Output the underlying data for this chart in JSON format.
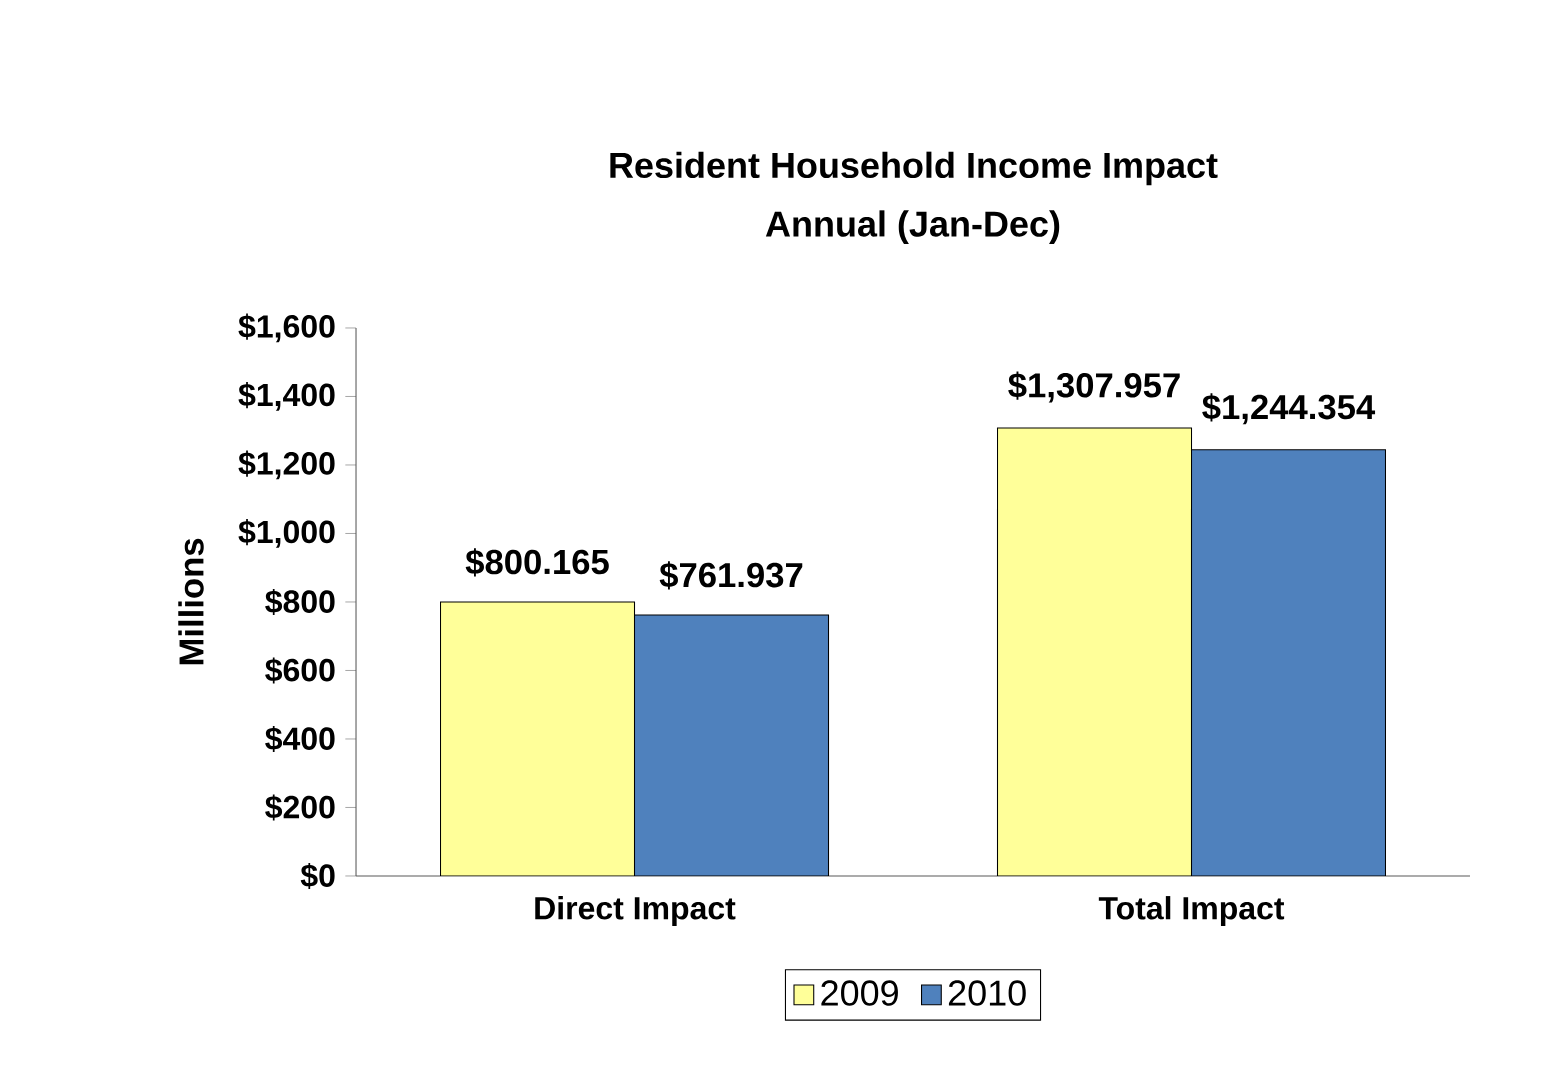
{
  "chart_data": {
    "type": "bar",
    "title": "Resident Household Income Impact",
    "subtitle": "Annual (Jan-Dec)",
    "ylabel": "Millions",
    "categories": [
      "Direct Impact",
      "Total Impact"
    ],
    "series": [
      {
        "name": "2009",
        "color": "#ffff99",
        "values": [
          800.165,
          1307.957
        ],
        "value_labels": [
          "$800.165",
          "$1,307.957"
        ]
      },
      {
        "name": "2010",
        "color": "#4f81bd",
        "values": [
          761.937,
          1244.354
        ],
        "value_labels": [
          "$761.937",
          "$1,244.354"
        ]
      }
    ],
    "ylim": [
      0,
      1600
    ],
    "yticks": [
      {
        "value": 0,
        "label": "$0"
      },
      {
        "value": 200,
        "label": "$200"
      },
      {
        "value": 400,
        "label": "$400"
      },
      {
        "value": 600,
        "label": "$600"
      },
      {
        "value": 800,
        "label": "$800"
      },
      {
        "value": 1000,
        "label": "$1,000"
      },
      {
        "value": 1200,
        "label": "$1,200"
      },
      {
        "value": 1400,
        "label": "$1,400"
      },
      {
        "value": 1600,
        "label": "$1,600"
      }
    ],
    "grid": false,
    "legend": "bottom"
  }
}
